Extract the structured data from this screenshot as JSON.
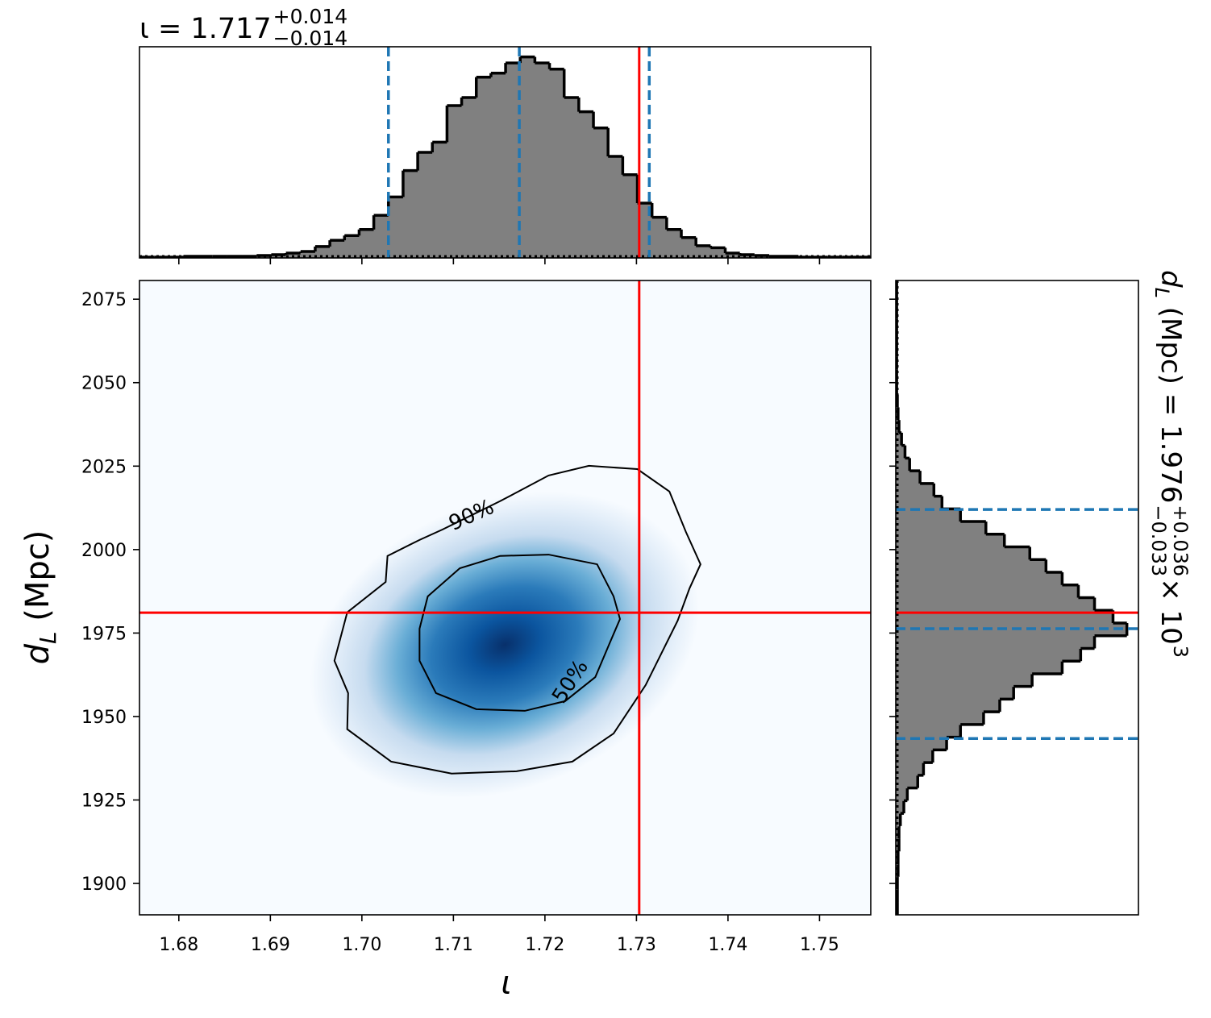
{
  "chart_data": {
    "type": "corner",
    "title": {
      "text": "ι = 1.717",
      "upper": "+0.014",
      "lower": "−0.014"
    },
    "side_title": {
      "symbol": "d",
      "sub": "L",
      "text": " (Mpc) = 1.976",
      "upper": "+0.036",
      "lower": "−0.033",
      "times": " × 10",
      "power": "3"
    },
    "xlabel": "ι",
    "ylabel": {
      "symbol": "d",
      "sub": "L",
      "unit": " (Mpc)"
    },
    "xlim": [
      1.6757,
      1.7556
    ],
    "ylim": [
      1890.6,
      2080.6
    ],
    "xticks": [
      1.68,
      1.69,
      {
        "value": 1.7,
        "label": "1.70"
      },
      1.71,
      1.72,
      1.73,
      1.74,
      1.75
    ],
    "yticks": [
      1900,
      1925,
      1950,
      1975,
      2000,
      2025,
      2050,
      2075
    ],
    "colors": {
      "hist": "#808080",
      "quantile": "#1f77b4",
      "truth": "#ff0000",
      "contour": "#000000"
    },
    "truth": {
      "x": 1.7303,
      "y": 1981.1
    },
    "contours": [
      {
        "label": "90%",
        "x": [
          1.7088,
          1.7151,
          1.7204,
          1.7248,
          1.7301,
          1.7336,
          1.7354,
          1.737,
          1.7358,
          1.7345,
          1.731,
          1.7275,
          1.723,
          1.7169,
          1.7098,
          1.7032,
          1.6984,
          1.6985,
          1.697,
          1.6984,
          1.7026,
          1.7028,
          1.7063
        ],
        "y": [
          2006.0,
          2014.5,
          2022.2,
          2025.1,
          2024.1,
          2017.4,
          2005.3,
          1995.6,
          1988.4,
          1978.7,
          1959.4,
          1944.9,
          1936.5,
          1933.6,
          1932.9,
          1936.5,
          1946.2,
          1957.0,
          1966.7,
          1981.2,
          1990.3,
          1998.1,
          2002.9
        ]
      },
      {
        "label": "50%",
        "x": [
          1.7072,
          1.7107,
          1.7151,
          1.7204,
          1.7257,
          1.7275,
          1.7282,
          1.727,
          1.7255,
          1.7222,
          1.7178,
          1.7125,
          1.7081,
          1.7063,
          1.7063
        ],
        "y": [
          1986.0,
          1994.4,
          1998.1,
          1998.5,
          1995.6,
          1986.0,
          1979.2,
          1971.5,
          1961.8,
          1954.6,
          1951.7,
          1952.2,
          1957.0,
          1966.7,
          1976.3
        ]
      }
    ],
    "x_hist": {
      "bins": [
        1.6757,
        1.6773,
        1.6789,
        1.6805,
        1.6821,
        1.6837,
        1.6853,
        1.6869,
        1.6885,
        1.6901,
        1.6917,
        1.6933,
        1.6949,
        1.6965,
        1.6981,
        1.6997,
        1.7013,
        1.7029,
        1.7045,
        1.7061,
        1.7077,
        1.7093,
        1.7109,
        1.7125,
        1.7141,
        1.7157,
        1.7173,
        1.7189,
        1.7205,
        1.7221,
        1.7237,
        1.7253,
        1.7269,
        1.7285,
        1.7301,
        1.7317,
        1.7333,
        1.7349,
        1.7365,
        1.7381,
        1.7397,
        1.7413,
        1.7429,
        1.7445,
        1.7461,
        1.7477,
        1.7493,
        1.7509,
        1.7525,
        1.7541,
        1.7557
      ],
      "counts": [
        0.4,
        0.4,
        0.4,
        0.8,
        0.8,
        0.8,
        0.8,
        0.8,
        1.2,
        1.6,
        2.4,
        3.2,
        5.6,
        8.7,
        11,
        14,
        21,
        30,
        43,
        52,
        57,
        75,
        79,
        89,
        91,
        96,
        99,
        96,
        93,
        79,
        72,
        64,
        50,
        41,
        27,
        20,
        14,
        10,
        6,
        5,
        2.4,
        1.6,
        1.2,
        0.8,
        0.8,
        0.4,
        0.4,
        0.4,
        0.4,
        0.4
      ],
      "ylim": [
        0,
        104
      ],
      "quantiles": [
        1.7029,
        1.7172,
        1.7314
      ],
      "prior": 0.8
    },
    "y_hist": {
      "bins": [
        1890.6,
        1894.4,
        1898.2,
        1902,
        1905.8,
        1909.6,
        1913.4,
        1917.2,
        1921,
        1924.8,
        1928.6,
        1932.4,
        1936.2,
        1940,
        1943.8,
        1947.6,
        1951.4,
        1955.2,
        1959,
        1962.8,
        1966.6,
        1970.4,
        1974.2,
        1978,
        1981.8,
        1985.6,
        1989.4,
        1993.2,
        1997,
        2000.8,
        2004.6,
        2008.4,
        2012.2,
        2016,
        2019.8,
        2023.6,
        2027.4,
        2031.2,
        2035,
        2038.8,
        2042.6,
        2046.4,
        2050.2,
        2054,
        2057.8,
        2061.6,
        2065.4,
        2069.2,
        2073,
        2076.8,
        2080.6
      ],
      "counts": [
        0.7,
        0.7,
        0.7,
        1,
        1,
        1.4,
        1.4,
        2,
        3.5,
        5,
        9.5,
        12,
        16,
        22,
        28,
        38,
        45,
        51,
        59,
        72,
        80,
        86,
        100,
        94,
        86,
        79,
        72,
        65,
        58,
        47,
        39,
        28,
        20,
        16.5,
        10.5,
        6,
        4,
        2.5,
        1.4,
        1,
        0.7,
        0.4,
        0.4,
        0.4,
        0.4,
        0.4,
        0.4,
        0.4,
        0.4,
        0.4
      ],
      "xlim": [
        0,
        105
      ],
      "quantiles": [
        1943.4,
        1976.3,
        2012.0
      ],
      "prior": 0.7
    }
  }
}
